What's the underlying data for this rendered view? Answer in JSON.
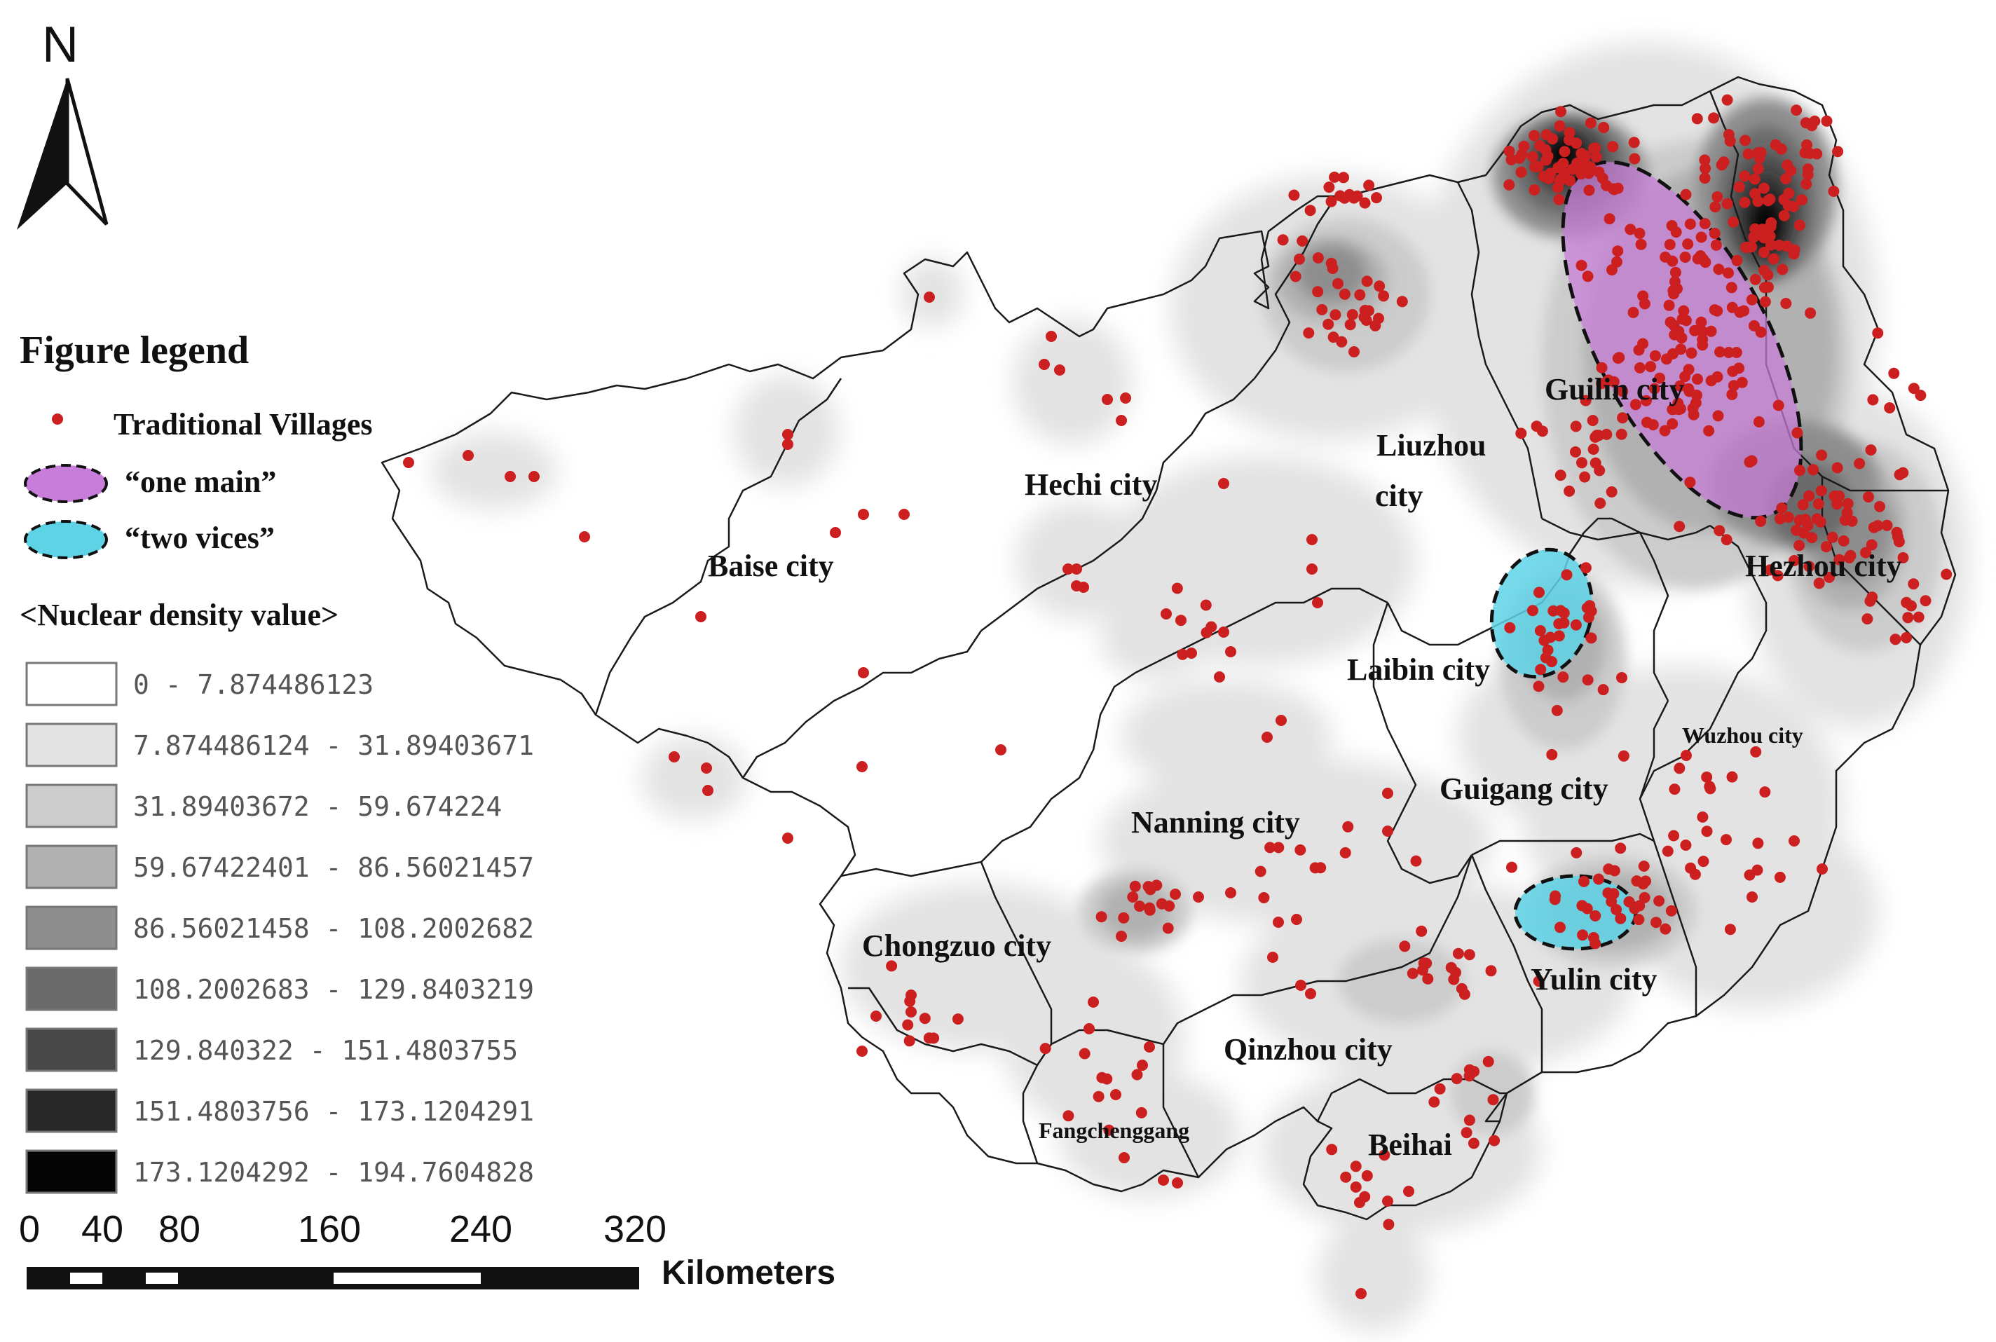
{
  "north_label": "N",
  "legend": {
    "title": "Figure legend",
    "villages_label": "Traditional Villages",
    "one_main_label": "“one main”",
    "two_vices_label": "“two vices”",
    "density_title": "<Nuclear density value>",
    "classes": [
      {
        "label": "0 - 7.874486123",
        "color": "#ffffff"
      },
      {
        "label": "7.874486124 - 31.89403671",
        "color": "#e3e3e3"
      },
      {
        "label": "31.89403672 - 59.674224",
        "color": "#cccccc"
      },
      {
        "label": "59.67422401 - 86.56021457",
        "color": "#b1b1b1"
      },
      {
        "label": "86.56021458 - 108.2002682",
        "color": "#8e8e8e"
      },
      {
        "label": "108.2002683 - 129.8403219",
        "color": "#6a6a6a"
      },
      {
        "label": "129.840322 - 151.4803755",
        "color": "#484848"
      },
      {
        "label": "151.4803756 - 173.1204291",
        "color": "#282828"
      },
      {
        "label": "173.1204292 - 194.7604828",
        "color": "#050505"
      }
    ]
  },
  "scale_bar": {
    "ticks": [
      "0",
      "40",
      "80",
      "160",
      "240",
      "320"
    ],
    "unit": "Kilometers"
  },
  "cities": {
    "baise": "Baise city",
    "hechi": "Hechi city",
    "liuzhou_1": "Liuzhou",
    "liuzhou_2": "city",
    "guilin": "Guilin city",
    "hezhou": "Hezhou city",
    "laibin": "Laibin city",
    "wuzhou": "Wuzhou city",
    "guigang": "Guigang city",
    "nanning": "Nanning city",
    "chongzuo": "Chongzuo city",
    "yulin": "Yulin city",
    "qinzhou": "Qinzhou city",
    "fangchenggang": "Fangchenggang",
    "beihai": "Beihai"
  },
  "colors": {
    "village_dot": "#cc1f1f",
    "one_main_fill": "#c77dd9",
    "two_vices_fill": "#5fd3e6",
    "boundary": "#1a1a1a"
  }
}
